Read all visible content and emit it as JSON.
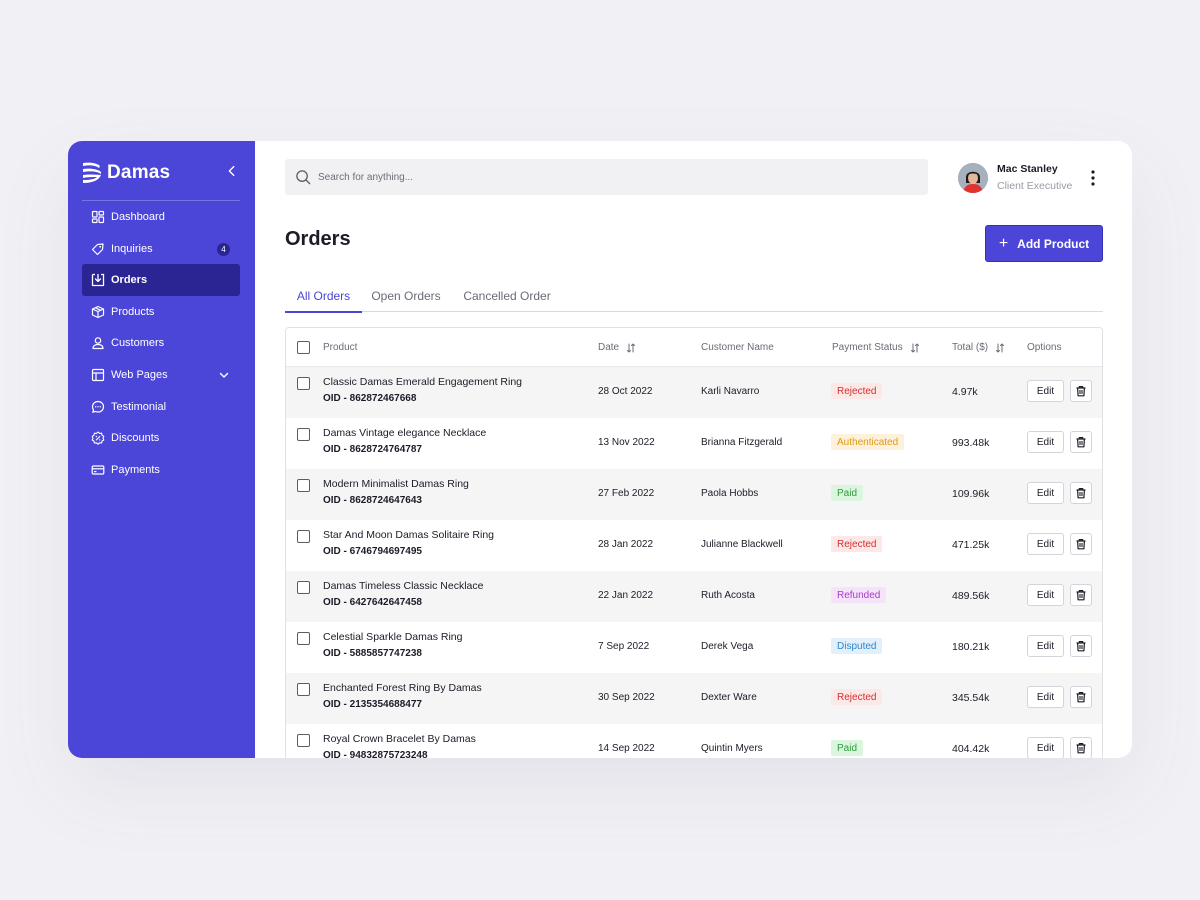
{
  "brand": {
    "name": "Damas"
  },
  "sidebar": {
    "items": [
      {
        "label": "Dashboard",
        "icon": "dashboard-icon"
      },
      {
        "label": "Inquiries",
        "icon": "tag-icon",
        "badge": "4"
      },
      {
        "label": "Orders",
        "icon": "inbox-download-icon",
        "active": true
      },
      {
        "label": "Products",
        "icon": "box-icon"
      },
      {
        "label": "Customers",
        "icon": "user-icon"
      },
      {
        "label": "Web Pages",
        "icon": "layout-icon",
        "expandable": true
      },
      {
        "label": "Testimonial",
        "icon": "chat-bubble-icon"
      },
      {
        "label": "Discounts",
        "icon": "discount-icon"
      },
      {
        "label": "Payments",
        "icon": "credit-card-icon"
      }
    ]
  },
  "search": {
    "placeholder": "Search for anything..."
  },
  "user": {
    "name": "Mac Stanley",
    "role": "Client Executive"
  },
  "page": {
    "title": "Orders",
    "add_button": "Add Product"
  },
  "tabs": [
    {
      "label": "All Orders",
      "active": true
    },
    {
      "label": "Open Orders"
    },
    {
      "label": "Cancelled Order"
    }
  ],
  "table": {
    "columns": {
      "product": "Product",
      "date": "Date",
      "customer": "Customer Name",
      "payment_status": "Payment Status",
      "total": "Total ($)",
      "options": "Options"
    },
    "edit_label": "Edit",
    "rows": [
      {
        "product": "Classic Damas Emerald Engagement Ring",
        "oid": "OID - 862872467668",
        "date": "28 Oct 2022",
        "customer": "Karli Navarro",
        "status": "Rejected",
        "total": "4.97k"
      },
      {
        "product": "Damas Vintage elegance Necklace",
        "oid": "OID - 8628724764787",
        "date": "13 Nov 2022",
        "customer": "Brianna Fitzgerald",
        "status": "Authenticated",
        "total": "993.48k"
      },
      {
        "product": "Modern Minimalist Damas Ring",
        "oid": "OID - 8628724647643",
        "date": "27 Feb 2022",
        "customer": "Paola Hobbs",
        "status": "Paid",
        "total": "109.96k"
      },
      {
        "product": "Star And Moon Damas Solitaire Ring",
        "oid": "OID - 6746794697495",
        "date": "28 Jan 2022",
        "customer": "Julianne Blackwell",
        "status": "Rejected",
        "total": "471.25k"
      },
      {
        "product": "Damas Timeless Classic Necklace",
        "oid": "OID - 6427642647458",
        "date": "22 Jan 2022",
        "customer": "Ruth Acosta",
        "status": "Refunded",
        "total": "489.56k"
      },
      {
        "product": "Celestial Sparkle Damas Ring",
        "oid": "OID - 5885857747238",
        "date": "7 Sep 2022",
        "customer": "Derek Vega",
        "status": "Disputed",
        "total": "180.21k"
      },
      {
        "product": "Enchanted Forest Ring By Damas",
        "oid": "OID - 2135354688477",
        "date": "30 Sep 2022",
        "customer": "Dexter Ware",
        "status": "Rejected",
        "total": "345.54k"
      },
      {
        "product": "Royal Crown Bracelet By Damas",
        "oid": "OID - 94832875723248",
        "date": "14 Sep 2022",
        "customer": "Quintin Myers",
        "status": "Paid",
        "total": "404.42k"
      }
    ]
  },
  "status_colors": {
    "Rejected": {
      "bg": "#fde8e8",
      "fg": "#d42f2f"
    },
    "Authenticated": {
      "bg": "#fdf1dc",
      "fg": "#e09a12"
    },
    "Paid": {
      "bg": "#dcf5de",
      "fg": "#2e9d3a"
    },
    "Refunded": {
      "bg": "#f5e3fa",
      "fg": "#a63cc9"
    },
    "Disputed": {
      "bg": "#e2f0fb",
      "fg": "#2f86d0"
    }
  },
  "colors": {
    "accent": "#4b45d8",
    "accent_dark": "#2b2593"
  }
}
